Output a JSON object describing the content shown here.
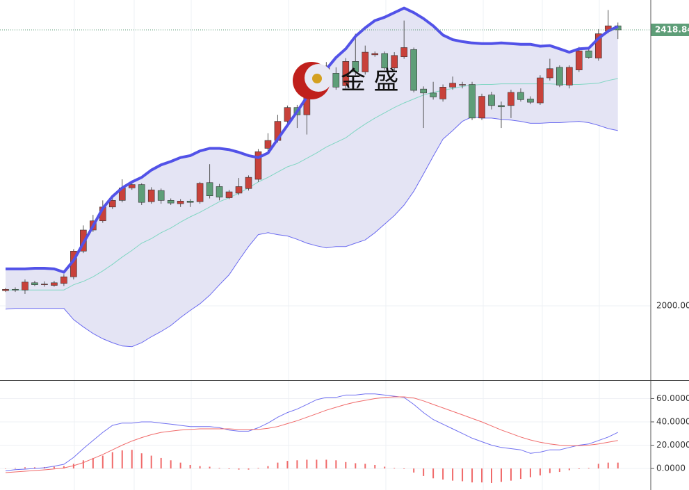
{
  "watermark": "金 盛",
  "chart_data": [
    {
      "type": "candlestick",
      "open": [
        2023,
        2025,
        2024,
        2035,
        2032,
        2031,
        2034,
        2044,
        2083,
        2115,
        2129,
        2150,
        2160,
        2179,
        2184,
        2158,
        2175,
        2160,
        2155,
        2159,
        2158,
        2187,
        2181,
        2164,
        2171,
        2178,
        2192,
        2239,
        2251,
        2280,
        2301,
        2290,
        2340,
        2350,
        2353,
        2334,
        2371,
        2355,
        2381,
        2383,
        2361,
        2378,
        2389,
        2329,
        2323,
        2314,
        2332,
        2335,
        2336,
        2285,
        2320,
        2304,
        2304,
        2324,
        2314,
        2308,
        2346,
        2362,
        2335,
        2358,
        2387,
        2376,
        2417,
        2425
      ],
      "high": [
        2027,
        2028,
        2040,
        2038,
        2037,
        2038,
        2048,
        2086,
        2122,
        2138,
        2160,
        2168,
        2192,
        2188,
        2186,
        2180,
        2178,
        2163,
        2162,
        2162,
        2188,
        2215,
        2185,
        2176,
        2194,
        2198,
        2238,
        2262,
        2290,
        2304,
        2305,
        2350,
        2360,
        2370,
        2362,
        2376,
        2413,
        2395,
        2386,
        2386,
        2385,
        2433,
        2392,
        2333,
        2340,
        2336,
        2348,
        2340,
        2340,
        2322,
        2325,
        2310,
        2328,
        2330,
        2318,
        2350,
        2375,
        2365,
        2365,
        2393,
        2392,
        2420,
        2449,
        2430
      ],
      "low": [
        2021,
        2021,
        2018,
        2030,
        2029,
        2029,
        2030,
        2040,
        2080,
        2112,
        2126,
        2147,
        2157,
        2176,
        2153,
        2155,
        2155,
        2153,
        2150,
        2150,
        2155,
        2163,
        2160,
        2162,
        2168,
        2175,
        2188,
        2234,
        2248,
        2276,
        2270,
        2260,
        2336,
        2345,
        2328,
        2330,
        2350,
        2351,
        2378,
        2358,
        2355,
        2375,
        2324,
        2270,
        2313,
        2310,
        2328,
        2330,
        2282,
        2282,
        2298,
        2270,
        2285,
        2310,
        2306,
        2305,
        2342,
        2332,
        2330,
        2355,
        2375,
        2372,
        2414,
        2405
      ],
      "close": [
        2025,
        2024,
        2036,
        2032,
        2033,
        2035,
        2044,
        2083,
        2115,
        2129,
        2150,
        2160,
        2179,
        2184,
        2157,
        2176,
        2160,
        2156,
        2159,
        2157,
        2186,
        2167,
        2165,
        2173,
        2181,
        2195,
        2234,
        2251,
        2280,
        2301,
        2290,
        2343,
        2355,
        2364,
        2332,
        2371,
        2355,
        2385,
        2383,
        2361,
        2380,
        2392,
        2327,
        2323,
        2317,
        2332,
        2338,
        2336,
        2285,
        2318,
        2304,
        2302,
        2324,
        2313,
        2309,
        2346,
        2360,
        2335,
        2362,
        2387,
        2377,
        2413,
        2425,
        2418.84
      ],
      "up_color": "#c8413a",
      "down_color": "#5e9e78",
      "bands": [
        {
          "color": "#5252e8",
          "values": [
            2056,
            2056,
            2056,
            2057,
            2057,
            2056,
            2051,
            2069,
            2095,
            2121,
            2148,
            2166,
            2179,
            2188,
            2195,
            2206,
            2214,
            2219,
            2225,
            2228,
            2235,
            2239,
            2239,
            2237,
            2233,
            2228,
            2225,
            2232,
            2253,
            2274,
            2295,
            2317,
            2338,
            2359,
            2377,
            2390,
            2409,
            2422,
            2433,
            2438,
            2445,
            2452,
            2445,
            2436,
            2425,
            2411,
            2404,
            2401,
            2399,
            2398,
            2398,
            2399,
            2398,
            2397,
            2397,
            2394,
            2395,
            2390,
            2385,
            2390,
            2391,
            2406,
            2417,
            2424
          ]
        },
        {
          "color": "#7fd6c2",
          "values": [
            2024,
            2024,
            2024,
            2024,
            2024,
            2024,
            2024,
            2032,
            2037,
            2044,
            2053,
            2063,
            2074,
            2084,
            2095,
            2102,
            2111,
            2118,
            2127,
            2135,
            2142,
            2150,
            2158,
            2164,
            2171,
            2179,
            2188,
            2195,
            2203,
            2211,
            2216,
            2224,
            2232,
            2241,
            2248,
            2255,
            2266,
            2276,
            2285,
            2293,
            2301,
            2308,
            2314,
            2320,
            2324,
            2327,
            2330,
            2333,
            2335,
            2336,
            2336,
            2337,
            2337,
            2337,
            2337,
            2337,
            2337,
            2336,
            2336,
            2336,
            2337,
            2338,
            2342,
            2345
          ]
        },
        {
          "color": "#6a6af0",
          "values": [
            1995,
            1996,
            1996,
            1996,
            1996,
            1996,
            1996,
            1979,
            1968,
            1958,
            1950,
            1944,
            1939,
            1938,
            1944,
            1953,
            1961,
            1970,
            1982,
            1993,
            2003,
            2016,
            2032,
            2047,
            2069,
            2090,
            2108,
            2111,
            2108,
            2106,
            2101,
            2095,
            2091,
            2088,
            2090,
            2090,
            2095,
            2100,
            2111,
            2124,
            2137,
            2153,
            2174,
            2200,
            2227,
            2253,
            2266,
            2280,
            2287,
            2285,
            2285,
            2283,
            2282,
            2280,
            2277,
            2277,
            2278,
            2278,
            2279,
            2280,
            2278,
            2274,
            2269,
            2266
          ]
        }
      ],
      "band_fill": "#e4e4f4",
      "ylim": [
        1887.1,
        2464.2
      ],
      "yticks": [
        {
          "value": 2000,
          "label": "2000.00"
        }
      ]
    },
    {
      "type": "macd",
      "series": [
        {
          "color": "#6f6ff0",
          "values": [
            -2,
            -1,
            -0.6,
            0,
            0.6,
            2,
            3.6,
            9.5,
            17,
            24,
            31,
            37,
            39,
            39,
            40,
            40,
            39,
            38,
            37,
            36,
            36,
            36,
            35,
            33,
            32,
            32,
            35,
            39,
            44,
            48,
            51,
            55,
            59,
            61,
            61,
            63,
            63,
            64,
            64,
            63,
            62,
            61,
            55,
            48,
            42,
            38,
            34,
            30,
            26,
            23,
            20,
            18,
            17,
            16,
            13,
            14,
            16,
            16,
            18,
            20,
            21,
            24,
            27,
            31
          ]
        },
        {
          "color": "#f06a6a",
          "values": [
            -3.6,
            -3,
            -2.4,
            -1.8,
            -1.2,
            -0.5,
            0.5,
            2.4,
            5,
            8.5,
            12,
            16,
            20,
            23.5,
            26.5,
            29,
            31,
            32,
            33,
            33.5,
            34,
            34,
            34,
            34,
            33.5,
            33.5,
            33.5,
            34.5,
            36,
            38.5,
            41,
            44,
            47,
            50,
            52.5,
            55,
            57,
            58.5,
            60,
            61,
            61.5,
            61.5,
            60.5,
            58,
            55,
            52,
            49,
            46,
            43,
            40,
            36.5,
            33,
            30,
            27,
            24.5,
            22.5,
            21,
            20,
            19.5,
            19.5,
            20,
            21,
            22.5,
            24
          ]
        }
      ],
      "histogram": [
        0,
        0.5,
        1,
        1,
        1.2,
        1.5,
        2,
        4,
        7,
        9,
        11,
        14,
        15.5,
        16,
        13,
        11,
        9,
        7,
        5,
        3,
        2,
        1.5,
        0.5,
        -0.5,
        -1,
        -1,
        0.5,
        2,
        5,
        6.5,
        7,
        7.5,
        7.5,
        7.5,
        7,
        5.5,
        4.5,
        4,
        3,
        1.5,
        0.5,
        -0.5,
        -3.5,
        -6.5,
        -8.5,
        -9.5,
        -10.5,
        -11,
        -12,
        -12,
        -12.5,
        -11.5,
        -10.5,
        -9,
        -7.5,
        -6,
        -4,
        -3,
        -1.5,
        -0.5,
        0.5,
        4,
        5,
        5
      ],
      "histogram_color": "#f06a6a",
      "ylim": [
        -18.5,
        75.8
      ],
      "yticks": [
        {
          "value": 0,
          "label": "0.0000"
        },
        {
          "value": 20,
          "label": "20.0000"
        },
        {
          "value": 40,
          "label": "40.0000"
        },
        {
          "value": 60,
          "label": "60.0000"
        }
      ]
    }
  ]
}
